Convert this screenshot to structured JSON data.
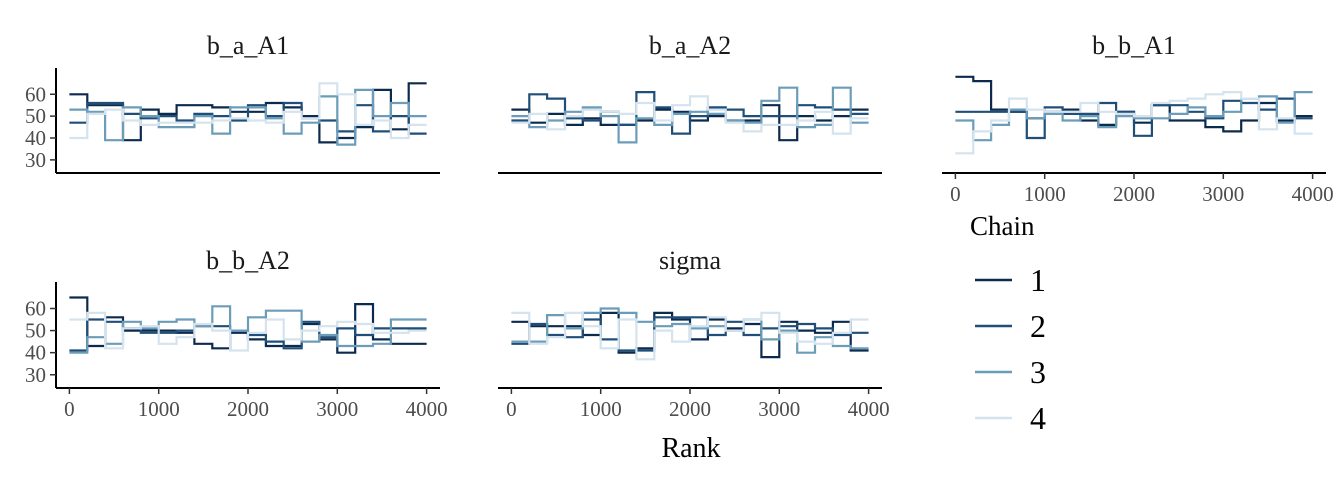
{
  "chart_data": {
    "type": "line",
    "description_free": true,
    "x_label": "Rank",
    "x_ticks": [
      0,
      1000,
      2000,
      3000,
      4000
    ],
    "y_ticks": [
      30,
      40,
      50,
      60
    ],
    "xlim": [
      -150,
      4150
    ],
    "ylim": [
      24,
      72
    ],
    "legend": {
      "title": "Chain",
      "entries": [
        "1",
        "2",
        "3",
        "4"
      ],
      "colors": [
        "#0b2a4e",
        "#1f4e78",
        "#6b9cb8",
        "#d4e3ee"
      ]
    },
    "panels": [
      {
        "title": "b_a_A1",
        "series": [
          {
            "name": "1",
            "values": [
              60,
              55,
              55,
              39,
              53,
              51,
              55,
              55,
              54,
              52,
              52,
              56,
              54,
              50,
              38,
              40,
              45,
              62,
              44,
              65
            ]
          },
          {
            "name": "2",
            "values": [
              47,
              56,
              56,
              51,
              49,
              50,
              48,
              51,
              50,
              48,
              55,
              50,
              56,
              49,
              48,
              43,
              55,
              43,
              50,
              42
            ]
          },
          {
            "name": "3",
            "values": [
              53,
              52,
              39,
              54,
              50,
              45,
              45,
              50,
              42,
              54,
              54,
              49,
              42,
              47,
              59,
              37,
              62,
              50,
              56,
              50
            ]
          },
          {
            "name": "4",
            "values": [
              40,
              51,
              53,
              48,
              46,
              47,
              47,
              47,
              48,
              49,
              48,
              47,
              52,
              49,
              65,
              60,
              46,
              48,
              40,
              46
            ]
          }
        ]
      },
      {
        "title": "b_a_A2",
        "series": [
          {
            "name": "1",
            "values": [
              53,
              47,
              51,
              46,
              49,
              46,
              46,
              48,
              53,
              52,
              48,
              50,
              48,
              48,
              55,
              39,
              50,
              48,
              50,
              53
            ]
          },
          {
            "name": "2",
            "values": [
              48,
              60,
              58,
              49,
              48,
              52,
              46,
              61,
              54,
              42,
              50,
              54,
              53,
              50,
              50,
              50,
              55,
              54,
              53,
              51
            ]
          },
          {
            "name": "3",
            "values": [
              50,
              45,
              48,
              52,
              54,
              50,
              38,
              49,
              46,
              51,
              52,
              51,
              48,
              47,
              57,
              63,
              45,
              46,
              63,
              47
            ]
          },
          {
            "name": "4",
            "values": [
              47,
              51,
              44,
              50,
              53,
              52,
              51,
              56,
              48,
              55,
              59,
              53,
              47,
              43,
              46,
              46,
              48,
              52,
              42,
              49
            ]
          }
        ]
      },
      {
        "title": "b_b_A1",
        "series": [
          {
            "name": "1",
            "values": [
              68,
              66,
              53,
              52,
              49,
              52,
              53,
              48,
              46,
              52,
              47,
              55,
              48,
              48,
              45,
              43,
              48,
              56,
              48,
              50
            ]
          },
          {
            "name": "2",
            "values": [
              52,
              52,
              52,
              52,
              40,
              54,
              51,
              51,
              56,
              52,
              41,
              55,
              55,
              52,
              49,
              57,
              56,
              53,
              58,
              49
            ]
          },
          {
            "name": "3",
            "values": [
              48,
              39,
              46,
              53,
              49,
              51,
              48,
              50,
              45,
              50,
              49,
              49,
              51,
              54,
              50,
              52,
              58,
              59,
              47,
              61
            ]
          },
          {
            "name": "4",
            "values": [
              33,
              43,
              48,
              58,
              53,
              52,
              52,
              56,
              52,
              51,
              50,
              56,
              57,
              58,
              60,
              61,
              58,
              44,
              49,
              42
            ]
          }
        ]
      },
      {
        "title": "b_b_A2",
        "series": [
          {
            "name": "1",
            "values": [
              65,
              43,
              56,
              50,
              50,
              50,
              49,
              44,
              42,
              49,
              46,
              43,
              43,
              53,
              46,
              40,
              62,
              46,
              44,
              44
            ]
          },
          {
            "name": "2",
            "values": [
              41,
              55,
              54,
              51,
              49,
              49,
              50,
              52,
              52,
              50,
              48,
              45,
              42,
              54,
              47,
              51,
              48,
              51,
              51,
              51
            ]
          },
          {
            "name": "3",
            "values": [
              40,
              47,
              44,
              54,
              51,
              54,
              55,
              52,
              61,
              50,
              56,
              59,
              59,
              45,
              48,
              43,
              43,
              44,
              55,
              55
            ]
          },
          {
            "name": "4",
            "values": [
              55,
              58,
              42,
              51,
              52,
              44,
              47,
              53,
              50,
              41,
              49,
              55,
              46,
              50,
              52,
              54,
              53,
              49,
              49,
              50
            ]
          }
        ]
      },
      {
        "title": "sigma",
        "series": [
          {
            "name": "1",
            "values": [
              54,
              52,
              52,
              52,
              48,
              58,
              40,
              42,
              58,
              55,
              46,
              55,
              51,
              53,
              38,
              54,
              50,
              49,
              54,
              41
            ]
          },
          {
            "name": "2",
            "values": [
              44,
              53,
              48,
              47,
              55,
              46,
              41,
              41,
              56,
              56,
              56,
              48,
              54,
              48,
              51,
              52,
              53,
              51,
              48,
              49
            ]
          },
          {
            "name": "3",
            "values": [
              45,
              45,
              57,
              51,
              58,
              60,
              58,
              54,
              52,
              53,
              51,
              52,
              50,
              55,
              46,
              50,
              40,
              47,
              43,
              42
            ]
          },
          {
            "name": "4",
            "values": [
              58,
              44,
              47,
              58,
              52,
              42,
              55,
              37,
              50,
              45,
              52,
              56,
              50,
              55,
              58,
              49,
              45,
              44,
              49,
              55
            ]
          }
        ]
      }
    ]
  }
}
